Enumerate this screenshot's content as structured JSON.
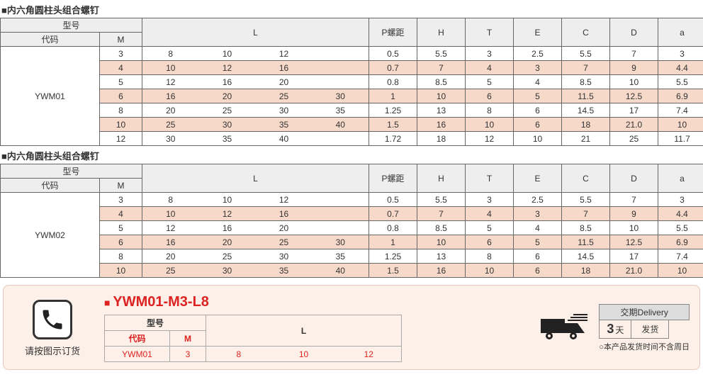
{
  "tables": [
    {
      "title": "■内六角圆柱头组合螺钉",
      "code": "YWM01",
      "headers": {
        "model": "型号",
        "daima": "代码",
        "M": "M",
        "L": "L",
        "P": "P螺距",
        "H": "H",
        "T": "T",
        "E": "E",
        "C": "C",
        "D": "D",
        "a": "a"
      },
      "rows": [
        {
          "M": "3",
          "L": [
            "8",
            "10",
            "12",
            ""
          ],
          "P": "0.5",
          "H": "5.5",
          "T": "3",
          "E": "2.5",
          "C": "5.5",
          "D": "7",
          "a": "3",
          "alt": false
        },
        {
          "M": "4",
          "L": [
            "10",
            "12",
            "16",
            ""
          ],
          "P": "0.7",
          "H": "7",
          "T": "4",
          "E": "3",
          "C": "7",
          "D": "9",
          "a": "4.4",
          "alt": true
        },
        {
          "M": "5",
          "L": [
            "12",
            "16",
            "20",
            ""
          ],
          "P": "0.8",
          "H": "8.5",
          "T": "5",
          "E": "4",
          "C": "8.5",
          "D": "10",
          "a": "5.5",
          "alt": false
        },
        {
          "M": "6",
          "L": [
            "16",
            "20",
            "25",
            "30"
          ],
          "P": "1",
          "H": "10",
          "T": "6",
          "E": "5",
          "C": "11.5",
          "D": "12.5",
          "a": "6.9",
          "alt": true
        },
        {
          "M": "8",
          "L": [
            "20",
            "25",
            "30",
            "35"
          ],
          "P": "1.25",
          "H": "13",
          "T": "8",
          "E": "6",
          "C": "14.5",
          "D": "17",
          "a": "7.4",
          "alt": false
        },
        {
          "M": "10",
          "L": [
            "25",
            "30",
            "35",
            "40"
          ],
          "P": "1.5",
          "H": "16",
          "T": "10",
          "E": "6",
          "C": "18",
          "D": "21.0",
          "a": "10",
          "alt": true
        },
        {
          "M": "12",
          "L": [
            "30",
            "35",
            "40",
            ""
          ],
          "P": "1.72",
          "H": "18",
          "T": "12",
          "E": "10",
          "C": "21",
          "D": "25",
          "a": "11.7",
          "alt": false
        }
      ]
    },
    {
      "title": "■内六角圆柱头组合螺钉",
      "code": "YWM02",
      "headers": {
        "model": "型号",
        "daima": "代码",
        "M": "M",
        "L": "L",
        "P": "P螺距",
        "H": "H",
        "T": "T",
        "E": "E",
        "C": "C",
        "D": "D",
        "a": "a"
      },
      "rows": [
        {
          "M": "3",
          "L": [
            "8",
            "10",
            "12",
            ""
          ],
          "P": "0.5",
          "H": "5.5",
          "T": "3",
          "E": "2.5",
          "C": "5.5",
          "D": "7",
          "a": "3",
          "alt": false
        },
        {
          "M": "4",
          "L": [
            "10",
            "12",
            "16",
            ""
          ],
          "P": "0.7",
          "H": "7",
          "T": "4",
          "E": "3",
          "C": "7",
          "D": "9",
          "a": "4.4",
          "alt": true
        },
        {
          "M": "5",
          "L": [
            "12",
            "16",
            "20",
            ""
          ],
          "P": "0.8",
          "H": "8.5",
          "T": "5",
          "E": "4",
          "C": "8.5",
          "D": "10",
          "a": "5.5",
          "alt": false
        },
        {
          "M": "6",
          "L": [
            "16",
            "20",
            "25",
            "30"
          ],
          "P": "1",
          "H": "10",
          "T": "6",
          "E": "5",
          "C": "11.5",
          "D": "12.5",
          "a": "6.9",
          "alt": true
        },
        {
          "M": "8",
          "L": [
            "20",
            "25",
            "30",
            "35"
          ],
          "P": "1.25",
          "H": "13",
          "T": "8",
          "E": "6",
          "C": "14.5",
          "D": "17",
          "a": "7.4",
          "alt": false
        },
        {
          "M": "10",
          "L": [
            "25",
            "30",
            "35",
            "40"
          ],
          "P": "1.5",
          "H": "16",
          "T": "10",
          "E": "6",
          "C": "18",
          "D": "21.0",
          "a": "10",
          "alt": true
        }
      ]
    }
  ],
  "order": {
    "phone_text": "请按图示订货",
    "example_code": "YWM01-M3-L8",
    "headers": {
      "model": "型号",
      "daima": "代码",
      "M": "M",
      "L": "L"
    },
    "row": {
      "code": "YWM01",
      "M": "3",
      "L": [
        "8",
        "10",
        "12"
      ]
    }
  },
  "delivery": {
    "title": "交期Delivery",
    "days_num": "3",
    "days_unit": "天",
    "ship": "发货",
    "note": "○本产品发货时间不含周日"
  },
  "colors": {
    "alt_bg": "#f7d9c9",
    "hdr_bg": "#eeeeee",
    "panel_bg": "#fdf0e8",
    "accent": "#d22222"
  },
  "col_widths": {
    "code": 140,
    "M": 60,
    "Lseg": 80,
    "P": 68,
    "other": 68
  }
}
